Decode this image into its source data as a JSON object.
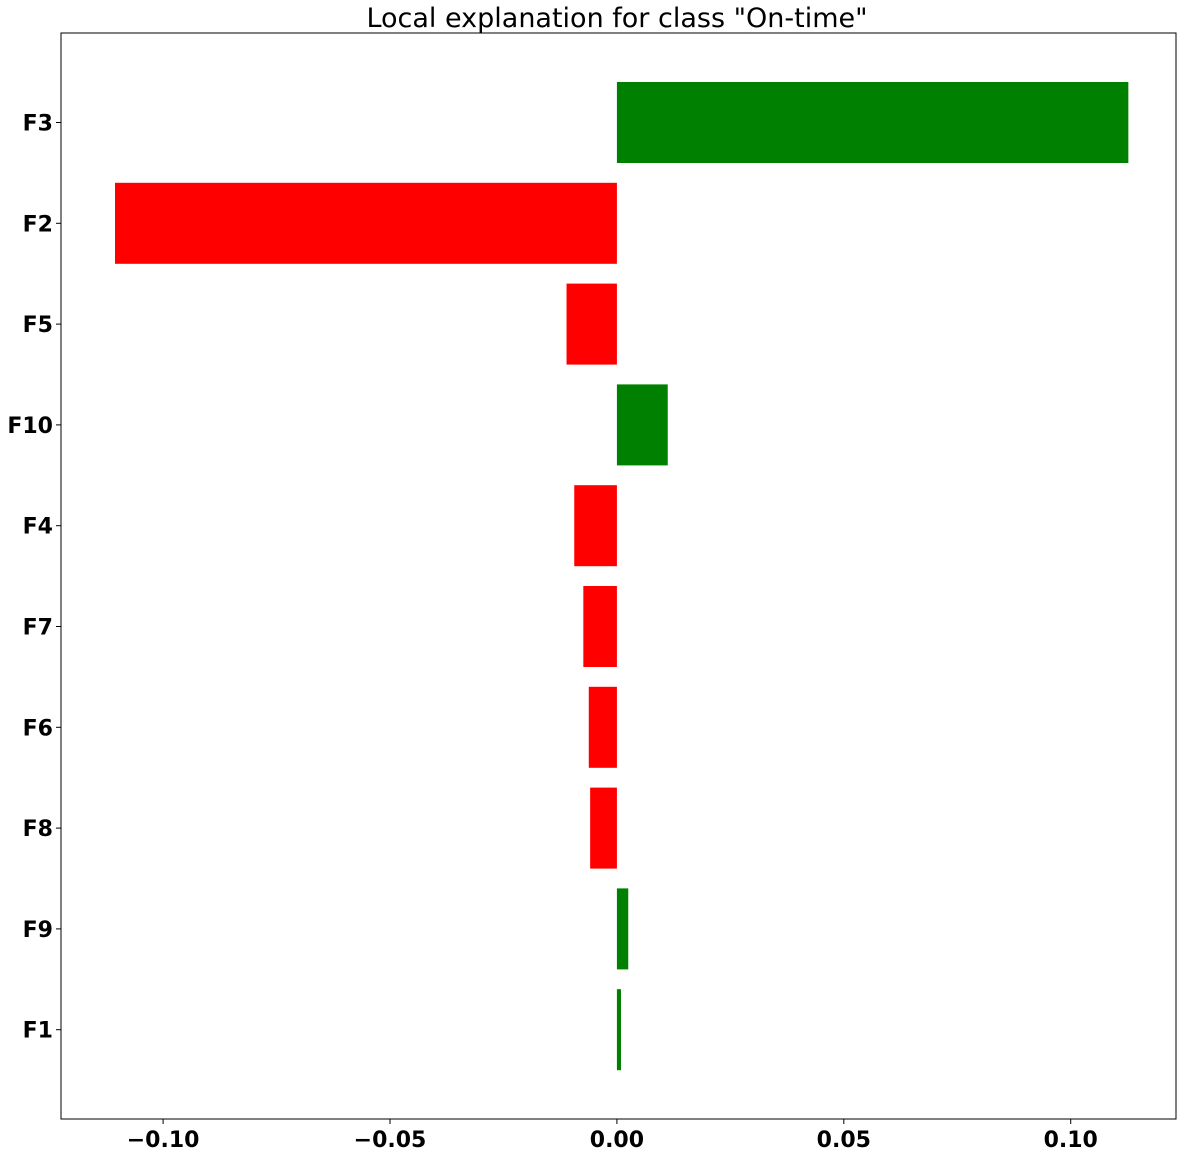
{
  "chart_data": {
    "type": "bar",
    "orientation": "horizontal",
    "title": "Local explanation for class \"On-time\"",
    "xlabel": "",
    "ylabel": "",
    "categories": [
      "F3",
      "F2",
      "F5",
      "F10",
      "F4",
      "F7",
      "F6",
      "F8",
      "F9",
      "F1"
    ],
    "values": [
      0.1127,
      -0.1106,
      -0.0111,
      0.0112,
      -0.0094,
      -0.0074,
      -0.0062,
      -0.0059,
      0.0025,
      0.0009
    ],
    "xlim": [
      -0.1225,
      0.1232
    ],
    "xticks": [
      -0.1,
      -0.05,
      0.0,
      0.05,
      0.1
    ],
    "xtick_labels": [
      "−0.10",
      "−0.05",
      "0.00",
      "0.05",
      "0.10"
    ],
    "positive_color": "#008000",
    "negative_color": "#ff0000",
    "grid": false,
    "legend": "none"
  }
}
